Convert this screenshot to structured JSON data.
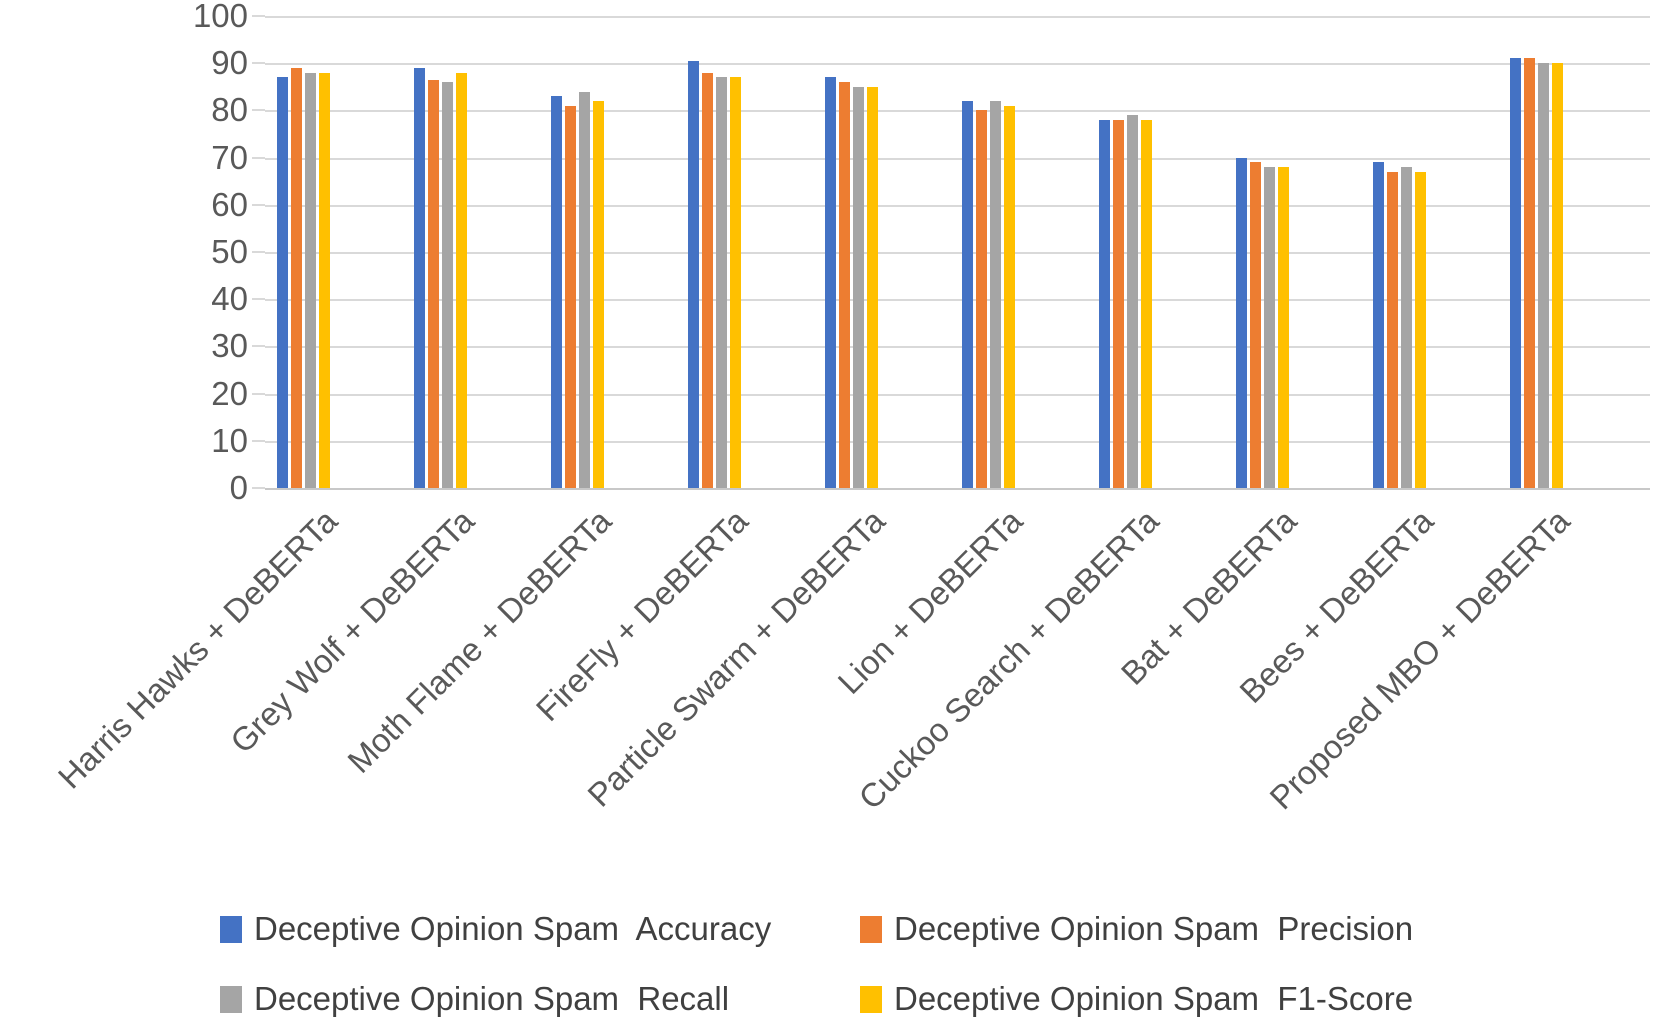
{
  "chart_data": {
    "type": "bar",
    "title": "",
    "xlabel": "",
    "ylabel": "",
    "categories": [
      "Harris Hawks + DeBERTa",
      "Grey Wolf + DeBERTa",
      "Moth Flame + DeBERTa",
      "FireFly + DeBERTa",
      "Particle Swarm + DeBERTa",
      "Lion + DeBERTa",
      "Cuckoo Search + DeBERTa",
      "Bat + DeBERTa",
      "Bees + DeBERTa",
      "Proposed MBO + DeBERTa"
    ],
    "series": [
      {
        "name": "Deceptive Opinion Spam  Accuracy",
        "key": "accuracy",
        "color": "#4472C4",
        "values": [
          87,
          89,
          83,
          90.5,
          87,
          82,
          78,
          70,
          69,
          91
        ]
      },
      {
        "name": "Deceptive Opinion Spam  Precision",
        "key": "precision",
        "color": "#ED7D31",
        "values": [
          89,
          86.5,
          81,
          88,
          86,
          80,
          78,
          69,
          67,
          91
        ]
      },
      {
        "name": "Deceptive Opinion Spam  Recall",
        "key": "recall",
        "color": "#A5A5A5",
        "values": [
          88,
          86,
          84,
          87,
          85,
          82,
          79,
          68,
          68,
          90
        ]
      },
      {
        "name": "Deceptive Opinion Spam  F1-Score",
        "key": "f1-score",
        "color": "#FFC000",
        "values": [
          88,
          88,
          82,
          87,
          85,
          81,
          78,
          68,
          67,
          90
        ]
      }
    ],
    "ylim": [
      0,
      100
    ],
    "yticks": [
      0,
      10,
      20,
      30,
      40,
      50,
      60,
      70,
      80,
      90,
      100
    ],
    "grid": "horizontal",
    "legend_position": "bottom",
    "legend_rows": [
      [
        0,
        1
      ],
      [
        2,
        3
      ]
    ]
  },
  "style_colors": {
    "gridline": "#D9D9D9",
    "axis_line": "#C8C8C8",
    "axis_text": "#595959",
    "legend_text": "#404040",
    "background": "#FFFFFF"
  }
}
